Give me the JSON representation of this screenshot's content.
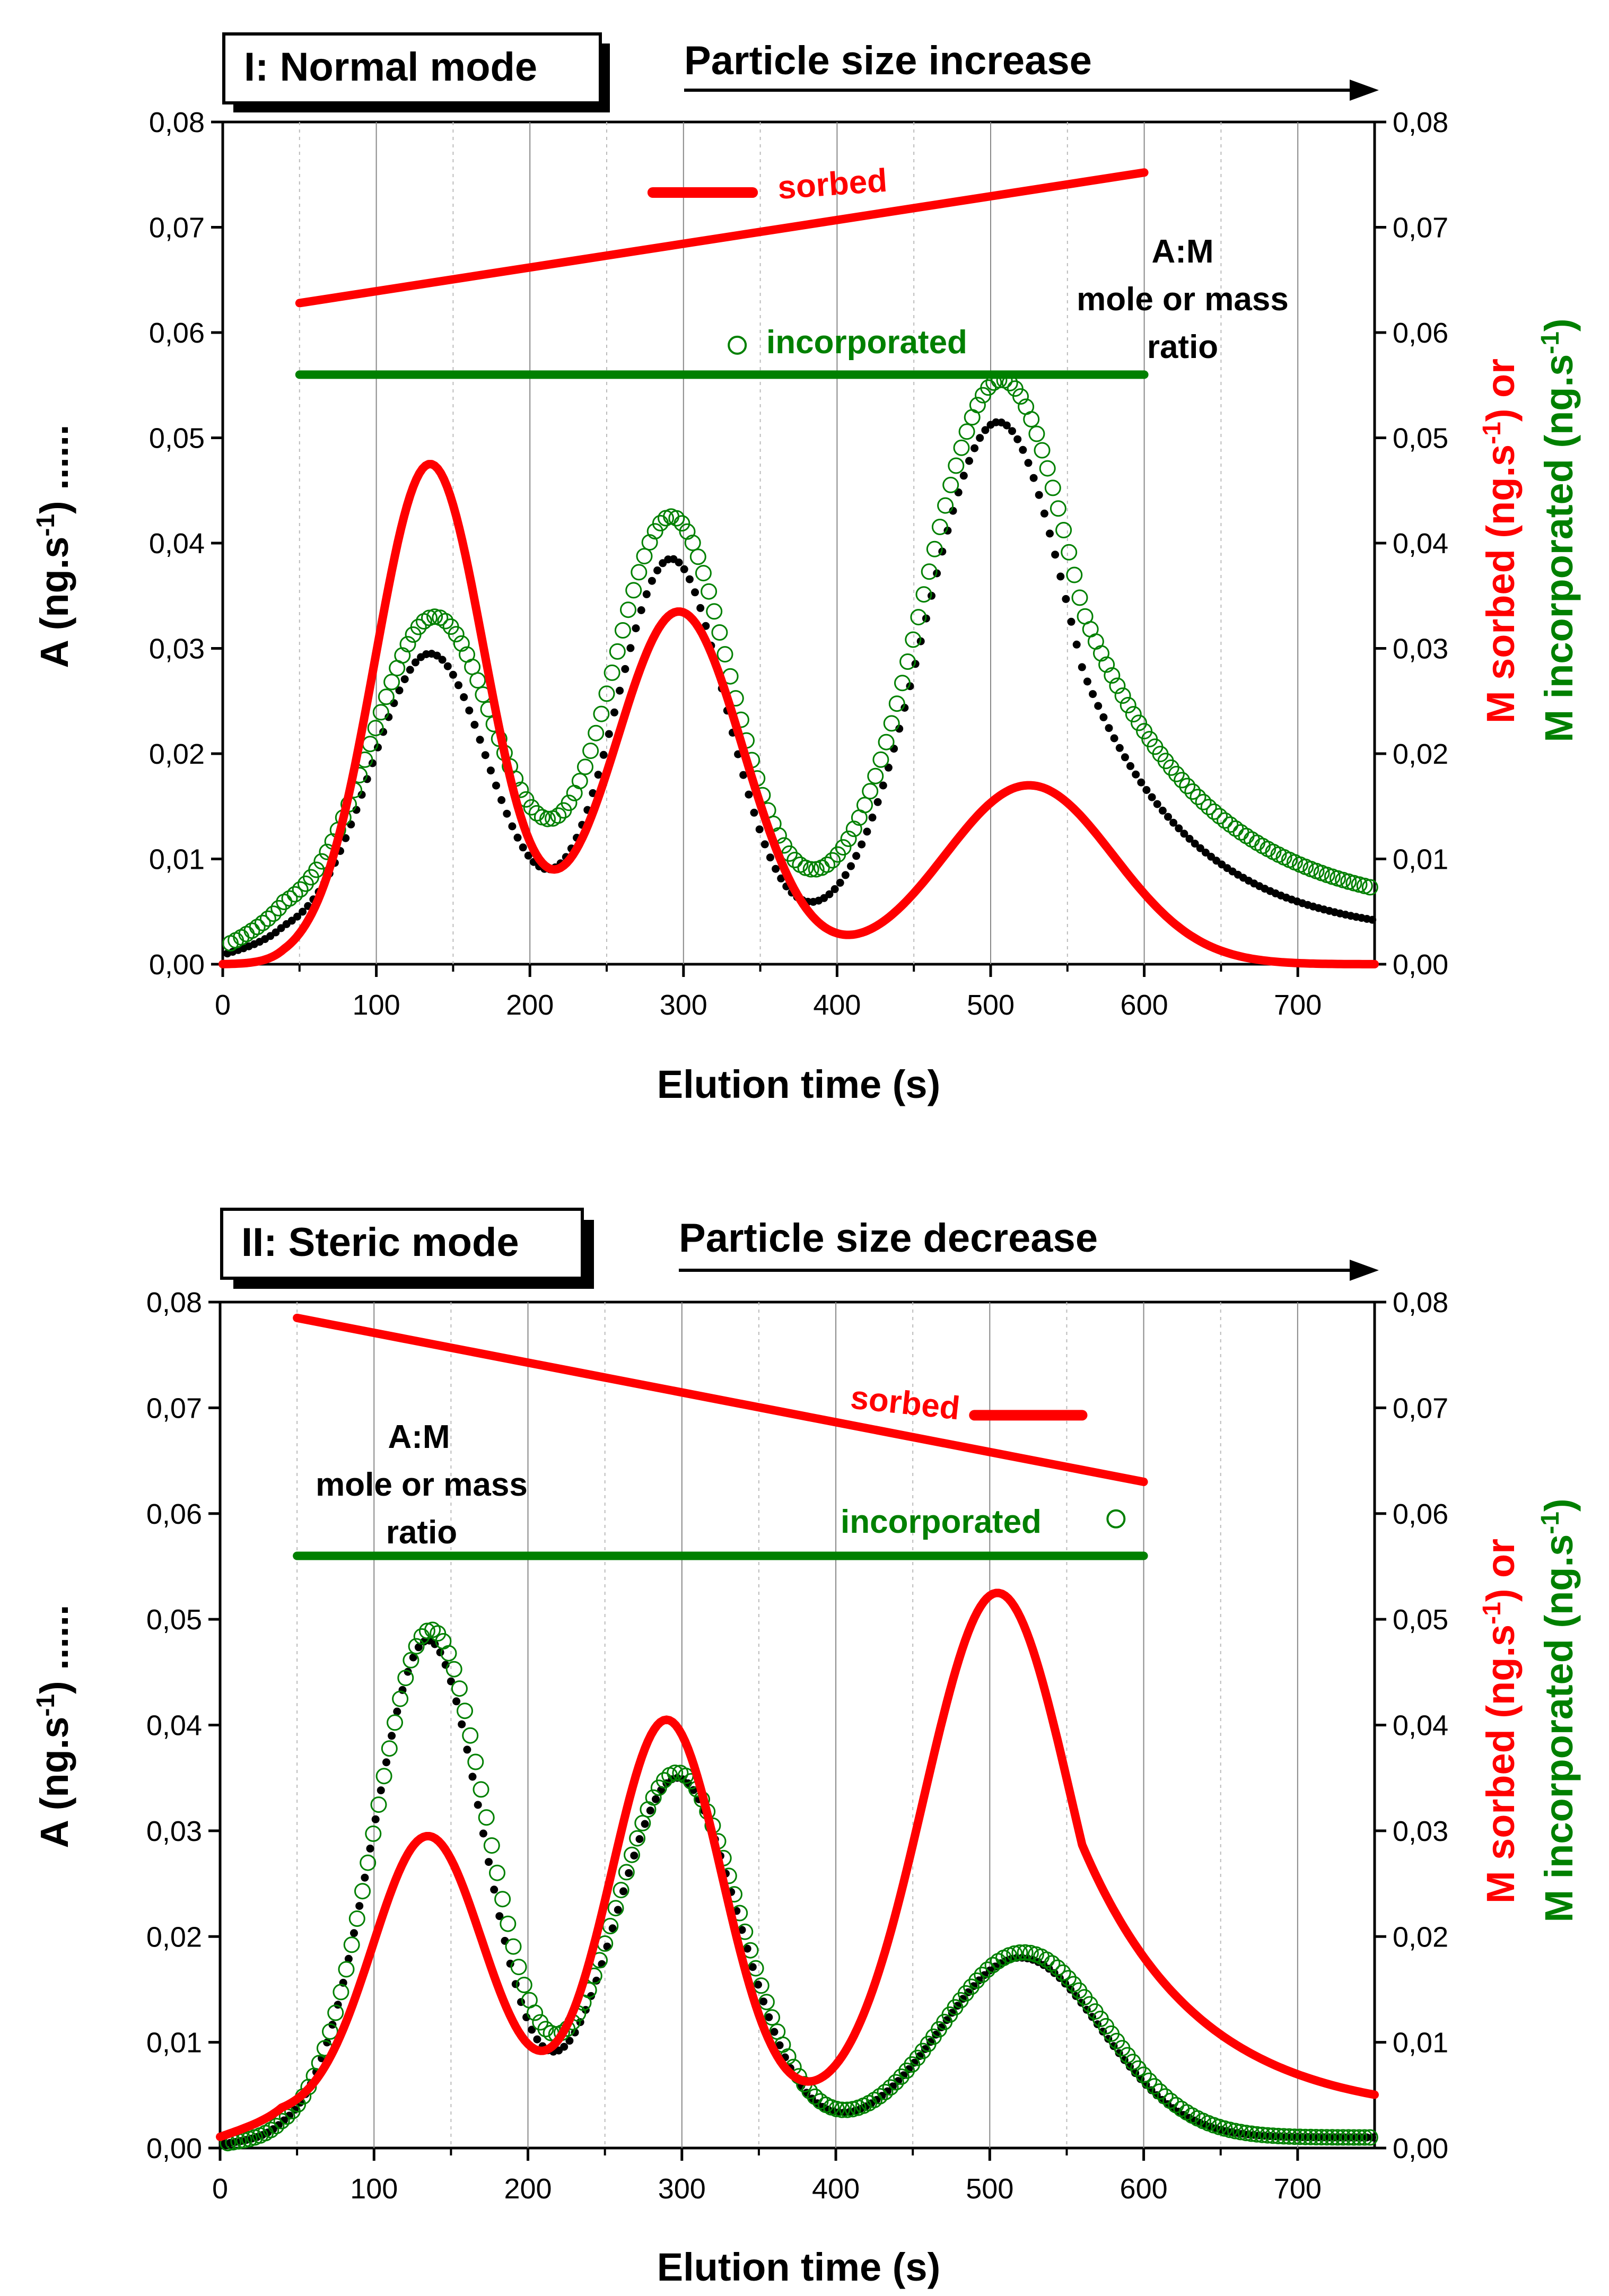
{
  "colors": {
    "sorbed": "#ff0000",
    "incorporated": "#008000",
    "A": "#000000",
    "grid_solid": "#888888",
    "grid_dotted": "#bbbbbb"
  },
  "chart_data": [
    {
      "type": "line",
      "id": "normal",
      "mode_label": "I: Normal mode",
      "size_label": "Particle size increase",
      "xlabel": "Elution time (s)",
      "ylabel_left": "A (ng.s-1)",
      "ylabel_right_red": "M sorbed (ng.s-1) or",
      "ylabel_right_green": "M incorporated (ng.s-1)",
      "xlim": [
        0,
        750
      ],
      "ylim": [
        0,
        0.08
      ],
      "x_ticks": [
        "0",
        "100",
        "200",
        "300",
        "400",
        "500",
        "600",
        "700"
      ],
      "y_ticks": [
        "0,00",
        "0,01",
        "0,02",
        "0,03",
        "0,04",
        "0,05",
        "0,06",
        "0,07",
        "0,08"
      ],
      "annotations": {
        "sorbed": "sorbed",
        "incorporated": "incorporated",
        "ratio_line1": "A:M",
        "ratio_line2": "mole or mass",
        "ratio_line3": "ratio"
      },
      "ratio_lines": {
        "sorbed": {
          "x": [
            50,
            600
          ],
          "y": [
            0.0628,
            0.0752
          ]
        },
        "incorporated": {
          "x": [
            50,
            600
          ],
          "y": [
            0.056,
            0.056
          ]
        }
      },
      "legend_markers": {
        "sorbed_line": {
          "x": [
            280,
            345
          ],
          "y": [
            0.0733,
            0.0733
          ]
        },
        "incorporated_circle": {
          "x": 335,
          "y": 0.0588
        }
      },
      "series": [
        {
          "name": "A",
          "style": "dotted",
          "baseline": 0.0025,
          "peaks": [
            [
              135,
              0.027,
              38
            ],
            [
              292,
              0.036,
              36
            ],
            [
              505,
              0.049,
              48
            ]
          ],
          "tail_from": 560,
          "tail_decay": 70,
          "x_range": [
            0,
            750
          ]
        },
        {
          "name": "M incorporated",
          "style": "circles",
          "baseline": 0.0045,
          "peaks": [
            [
              138,
              0.0285,
              40
            ],
            [
              292,
              0.038,
              38
            ],
            [
              507,
              0.051,
              50
            ]
          ],
          "tail_from": 560,
          "tail_decay": 80,
          "x_range": [
            0,
            750
          ]
        },
        {
          "name": "M sorbed",
          "style": "line",
          "baseline": 0,
          "peaks": [
            [
              135,
              0.0475,
              36
            ],
            [
              297,
              0.0335,
              42
            ],
            [
              525,
              0.017,
              55
            ]
          ],
          "x_range": [
            0,
            750
          ]
        }
      ]
    },
    {
      "type": "line",
      "id": "steric",
      "mode_label": "II: Steric mode",
      "size_label": "Particle size decrease",
      "xlabel": "Elution time (s)",
      "ylabel_left": "A (ng.s-1)",
      "ylabel_right_red": "M sorbed (ng.s-1) or",
      "ylabel_right_green": "M incorporated (ng.s-1)",
      "xlim": [
        0,
        750
      ],
      "ylim": [
        0,
        0.08
      ],
      "x_ticks": [
        "0",
        "100",
        "200",
        "300",
        "400",
        "500",
        "600",
        "700"
      ],
      "y_ticks": [
        "0,00",
        "0,01",
        "0,02",
        "0,03",
        "0,04",
        "0,05",
        "0,06",
        "0,07",
        "0,08"
      ],
      "annotations": {
        "sorbed": "sorbed",
        "incorporated": "incorporated",
        "ratio_line1": "A:M",
        "ratio_line2": "mole or mass",
        "ratio_line3": "ratio"
      },
      "ratio_lines": {
        "sorbed": {
          "x": [
            50,
            600
          ],
          "y": [
            0.0785,
            0.063
          ]
        },
        "incorporated": {
          "x": [
            50,
            600
          ],
          "y": [
            0.056,
            0.056
          ]
        }
      },
      "legend_markers": {
        "sorbed_line": {
          "x": [
            490,
            560
          ],
          "y": [
            0.0693,
            0.0693
          ]
        },
        "incorporated_circle": {
          "x": 582,
          "y": 0.0595
        }
      },
      "series": [
        {
          "name": "A",
          "style": "dotted",
          "baseline": 0.001,
          "peaks": [
            [
              135,
              0.047,
              36
            ],
            [
              297,
              0.034,
              40
            ],
            [
              520,
              0.017,
              52
            ]
          ],
          "x_range": [
            0,
            750
          ]
        },
        {
          "name": "M incorporated",
          "style": "circles",
          "baseline": 0.001,
          "peaks": [
            [
              137,
              0.048,
              37
            ],
            [
              297,
              0.0345,
              41
            ],
            [
              522,
              0.0175,
              53
            ]
          ],
          "x_range": [
            0,
            750
          ]
        },
        {
          "name": "M sorbed",
          "style": "line",
          "baseline": 0.003,
          "peaks": [
            [
              135,
              0.0265,
              36
            ],
            [
              290,
              0.0375,
              36
            ],
            [
              505,
              0.0495,
              48
            ]
          ],
          "tail_from": 560,
          "tail_decay": 75,
          "x_range": [
            0,
            750
          ]
        }
      ]
    }
  ]
}
